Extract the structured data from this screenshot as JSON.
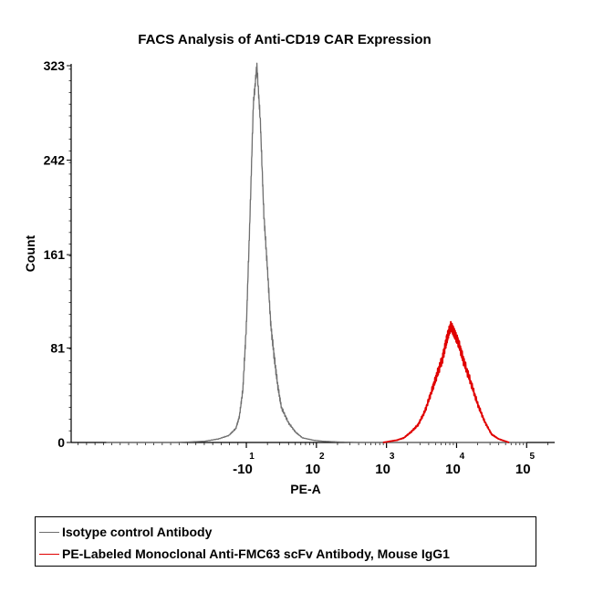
{
  "chart_data": {
    "type": "line",
    "title": "FACS Analysis of Anti-CD19 CAR Expression",
    "xlabel": "PE-A",
    "ylabel": "Count",
    "ylim": [
      0,
      323
    ],
    "yticks": [
      "0",
      "81",
      "161",
      "242",
      "323"
    ],
    "xscale": "log",
    "xlim": [
      -1.5,
      5.4
    ],
    "xticks": [
      {
        "base": "-10",
        "exp": "1",
        "value": 1
      },
      {
        "base": "10",
        "exp": "2",
        "value": 2
      },
      {
        "base": "10",
        "exp": "3",
        "value": 3
      },
      {
        "base": "10",
        "exp": "4",
        "value": 4
      },
      {
        "base": "10",
        "exp": "5",
        "value": 5
      }
    ],
    "legend_position": "bottom",
    "series": [
      {
        "name": "Isotype control Antibody",
        "color": "#6e6e6e",
        "x": [
          -1.0,
          0.0,
          0.4,
          0.6,
          0.75,
          0.85,
          0.9,
          0.95,
          1.0,
          1.05,
          1.1,
          1.15,
          1.2,
          1.25,
          1.3,
          1.35,
          1.4,
          1.45,
          1.5,
          1.6,
          1.7,
          1.8,
          1.95,
          2.1,
          2.3,
          2.6,
          3.0,
          4.0,
          5.0
        ],
        "y": [
          0,
          0,
          1,
          3,
          6,
          12,
          22,
          45,
          100,
          190,
          290,
          323,
          275,
          195,
          150,
          100,
          72,
          48,
          30,
          17,
          9,
          4,
          2,
          1,
          0.5,
          0,
          0,
          0,
          0
        ]
      },
      {
        "name": "PE-Labeled Monoclonal Anti-FMC63 scFv Antibody, Mouse IgG1",
        "color": "#e00000",
        "x": [
          2.95,
          3.05,
          3.15,
          3.25,
          3.35,
          3.45,
          3.55,
          3.65,
          3.72,
          3.8,
          3.85,
          3.88,
          3.92,
          3.95,
          3.98,
          4.03,
          4.1,
          4.2,
          4.3,
          4.4,
          4.5,
          4.6,
          4.7,
          4.75
        ],
        "y": [
          0,
          1,
          2,
          4,
          9,
          15,
          27,
          45,
          58,
          72,
          86,
          93,
          100,
          96,
          92,
          85,
          70,
          52,
          33,
          18,
          7,
          3,
          1,
          0
        ]
      }
    ]
  },
  "legend": {
    "items": [
      {
        "label": "Isotype control Antibody",
        "color": "#6e6e6e"
      },
      {
        "label": "PE-Labeled Monoclonal Anti-FMC63 scFv Antibody, Mouse IgG1",
        "color": "#e00000"
      }
    ]
  }
}
